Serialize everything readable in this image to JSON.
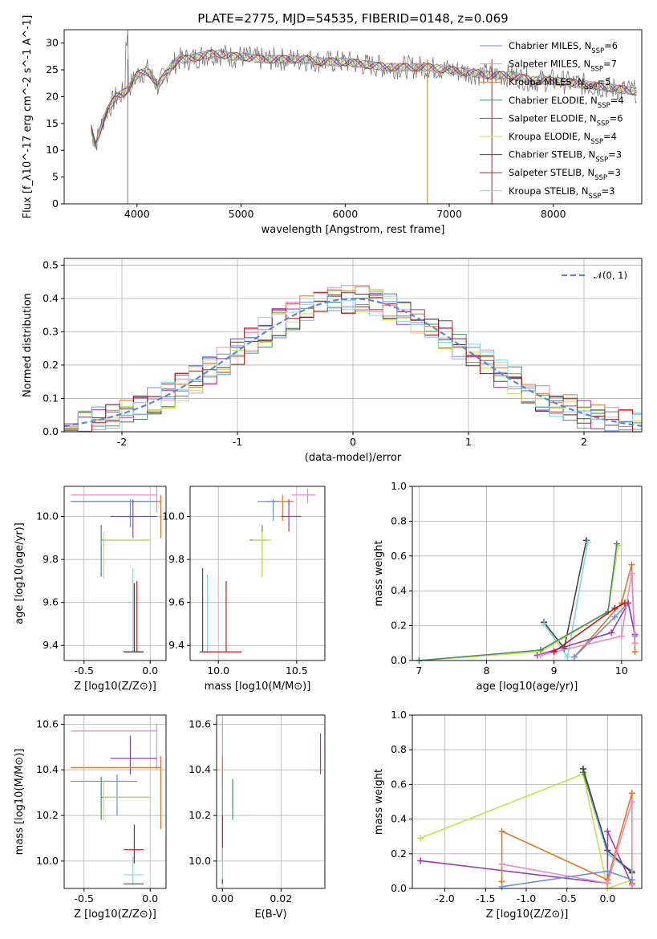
{
  "chart_data": [
    {
      "id": "spectrum",
      "type": "line",
      "title": "PLATE=2775, MJD=54535, FIBERID=0148, z=0.069",
      "xlabel": "wavelength [Angstrom, rest frame]",
      "ylabel": "Flux [f_λ10^-17 erg cm^-2 s^-1 A^-1]",
      "xlim": [
        3300,
        8850
      ],
      "ylim": [
        0,
        32.5
      ],
      "xticks": [
        4000,
        5000,
        6000,
        7000,
        8000
      ],
      "yticks": [
        0,
        5,
        10,
        15,
        20,
        25,
        30
      ],
      "legend_position": "top-right",
      "grid": false,
      "series": [
        {
          "name": "Chabrier MILES",
          "nssp": "6",
          "color": "#6f8fdc"
        },
        {
          "name": "Salpeter MILES",
          "nssp": "7",
          "color": "#e88bc5"
        },
        {
          "name": "Kroupa MILES",
          "nssp": "5",
          "color": "#e0762a"
        },
        {
          "name": "Chabrier ELODIE",
          "nssp": "4",
          "color": "#4f8a6a"
        },
        {
          "name": "Salpeter ELODIE",
          "nssp": "6",
          "color": "#9a3ab4"
        },
        {
          "name": "Kroupa ELODIE",
          "nssp": "4",
          "color": "#c8e04a"
        },
        {
          "name": "Chabrier STELIB",
          "nssp": "3",
          "color": "#444444"
        },
        {
          "name": "Salpeter STELIB",
          "nssp": "3",
          "color": "#c01818"
        },
        {
          "name": "Kroupa STELIB",
          "nssp": "3",
          "color": "#7fd6e0"
        }
      ],
      "data_grey_color": "#777777",
      "data": {
        "x": [
          3560,
          3600,
          3700,
          3800,
          3900,
          4000,
          4100,
          4200,
          4300,
          4400,
          4500,
          4600,
          4700,
          4800,
          4900,
          5000,
          5200,
          5400,
          5600,
          5800,
          6000,
          6200,
          6400,
          6600,
          6800,
          7000,
          7200,
          7400,
          7600,
          7700,
          7800,
          8000,
          8200,
          8400,
          8600,
          8800
        ],
        "y": [
          14,
          11,
          17,
          20,
          21,
          24,
          25,
          22,
          25,
          27,
          27,
          27.5,
          28,
          28,
          27.5,
          27.5,
          27,
          27,
          27,
          26.5,
          26.5,
          26,
          25.5,
          25.5,
          25.5,
          25,
          24.5,
          24,
          24,
          23.5,
          23,
          23,
          22.5,
          22,
          21.5,
          21
        ]
      }
    },
    {
      "id": "residuals",
      "type": "step",
      "xlabel": "(data-model)/error",
      "ylabel": "Normed distribution",
      "xlim": [
        -2.5,
        2.5
      ],
      "ylim": [
        0,
        0.52
      ],
      "xticks": [
        -2,
        -1,
        0,
        1,
        2
      ],
      "yticks": [
        0.0,
        0.1,
        0.2,
        0.3,
        0.4,
        0.5
      ],
      "grid": true,
      "gauss_label": "𝒩(0, 1)",
      "gauss_color": "#5b87d6"
    },
    {
      "id": "age_vs_Z",
      "type": "scatter",
      "xlabel": "Z [log10(Z/Z⊙)]",
      "ylabel": "age  [log10(age/yr)]",
      "xlim": [
        -0.65,
        0.12
      ],
      "ylim": [
        9.33,
        10.14
      ],
      "xticks": [
        -0.5,
        0.0
      ],
      "yticks": [
        9.4,
        9.6,
        9.8,
        10.0
      ],
      "grid": true,
      "points": [
        {
          "c": "#e88bc5",
          "x": 0.05,
          "y": 10.1,
          "xl": -0.6,
          "xh": 0.05,
          "yl": 10.02,
          "yh": 10.14
        },
        {
          "c": "#e0762a",
          "x": 0.08,
          "y": 10.07,
          "xl": -0.6,
          "xh": 0.08,
          "yl": 9.9,
          "yh": 10.1
        },
        {
          "c": "#6f8fdc",
          "x": -0.15,
          "y": 10.07,
          "xl": -0.6,
          "xh": 0.05,
          "yl": 9.95,
          "yh": 10.08
        },
        {
          "c": "#9a3ab4",
          "x": -0.13,
          "y": 10.0,
          "xl": -0.3,
          "xh": 0.05,
          "yl": 9.9,
          "yh": 10.08
        },
        {
          "c": "#4f8a6a",
          "x": -0.37,
          "y": 9.89,
          "xl": -0.37,
          "xh": 0.0,
          "yl": 9.72,
          "yh": 9.96
        },
        {
          "c": "#c8e04a",
          "x": -0.35,
          "y": 9.89,
          "xl": -0.35,
          "xh": 0.0,
          "yl": 9.71,
          "yh": 9.93
        },
        {
          "c": "#7fd6e0",
          "x": -0.13,
          "y": 9.37,
          "xl": -0.2,
          "xh": -0.05,
          "yl": 9.37,
          "yh": 9.76
        },
        {
          "c": "#c01818",
          "x": -0.1,
          "y": 9.37,
          "xl": -0.2,
          "xh": -0.05,
          "yl": 9.37,
          "yh": 9.7
        },
        {
          "c": "#444444",
          "x": -0.12,
          "y": 9.37,
          "xl": -0.2,
          "xh": -0.05,
          "yl": 9.37,
          "yh": 9.69
        }
      ]
    },
    {
      "id": "age_vs_mass",
      "type": "scatter",
      "xlabel": "mass [log10(M/M⊙)]",
      "ylabel": "",
      "xlim": [
        9.82,
        10.68
      ],
      "ylim": [
        9.33,
        10.14
      ],
      "xticks": [
        10.0,
        10.5
      ],
      "yticks": [
        9.4,
        9.6,
        9.8,
        10.0
      ],
      "grid": true,
      "points": [
        {
          "c": "#e88bc5",
          "x": 10.57,
          "y": 10.1,
          "xl": 10.47,
          "xh": 10.62,
          "yl": 10.06,
          "yh": 10.13
        },
        {
          "c": "#e0762a",
          "x": 10.41,
          "y": 10.07,
          "xl": 10.3,
          "xh": 10.48,
          "yl": 9.98,
          "yh": 10.1
        },
        {
          "c": "#6f8fdc",
          "x": 10.35,
          "y": 10.07,
          "xl": 10.25,
          "xh": 10.38,
          "yl": 9.98,
          "yh": 10.08
        },
        {
          "c": "#9a3ab4",
          "x": 10.45,
          "y": 10.0,
          "xl": 10.4,
          "xh": 10.53,
          "yl": 9.93,
          "yh": 10.08
        },
        {
          "c": "#4f8a6a",
          "x": 10.28,
          "y": 9.89,
          "xl": 10.2,
          "xh": 10.32,
          "yl": 9.72,
          "yh": 9.96
        },
        {
          "c": "#c8e04a",
          "x": 10.28,
          "y": 9.89,
          "xl": 10.22,
          "xh": 10.34,
          "yl": 9.72,
          "yh": 9.93
        },
        {
          "c": "#444444",
          "x": 9.9,
          "y": 9.37,
          "xl": 9.88,
          "xh": 9.93,
          "yl": 9.37,
          "yh": 9.76
        },
        {
          "c": "#7fd6e0",
          "x": 9.93,
          "y": 9.37,
          "xl": 9.9,
          "xh": 9.96,
          "yl": 9.37,
          "yh": 9.73
        },
        {
          "c": "#c01818",
          "x": 10.05,
          "y": 9.37,
          "xl": 9.9,
          "xh": 10.15,
          "yl": 9.37,
          "yh": 9.7
        }
      ]
    },
    {
      "id": "massweight_vs_age",
      "type": "line",
      "xlabel": "age  [log10(age/yr)]",
      "ylabel": "mass weight",
      "xlim": [
        6.9,
        10.3
      ],
      "ylim": [
        0,
        1.0
      ],
      "xticks": [
        7,
        8,
        9,
        10
      ],
      "yticks": [
        0.0,
        0.2,
        0.4,
        0.6,
        0.8,
        1.0
      ],
      "grid": true,
      "series": [
        {
          "c": "#444444",
          "x": [
            8.85,
            9.15,
            9.48
          ],
          "y": [
            0.22,
            0.07,
            0.69
          ]
        },
        {
          "c": "#7fd6e0",
          "x": [
            8.85,
            9.2,
            9.5
          ],
          "y": [
            0.21,
            0.02,
            0.68
          ]
        },
        {
          "c": "#c8e04a",
          "x": [
            7.0,
            8.8,
            9.8,
            9.95
          ],
          "y": [
            0.0,
            0.05,
            0.28,
            0.66
          ]
        },
        {
          "c": "#4f8a6a",
          "x": [
            7.0,
            8.8,
            9.8,
            9.93
          ],
          "y": [
            0.0,
            0.06,
            0.28,
            0.67
          ]
        },
        {
          "c": "#e0762a",
          "x": [
            9.3,
            10.0,
            10.15,
            10.2
          ],
          "y": [
            0.02,
            0.33,
            0.55,
            0.05
          ]
        },
        {
          "c": "#6f8fdc",
          "x": [
            9.3,
            9.9,
            10.1,
            10.2
          ],
          "y": [
            0.02,
            0.25,
            0.33,
            0.14
          ]
        },
        {
          "c": "#9a3ab4",
          "x": [
            8.75,
            9.85,
            10.1,
            10.2
          ],
          "y": [
            0.03,
            0.16,
            0.33,
            0.15
          ]
        },
        {
          "c": "#e88bc5",
          "x": [
            8.8,
            10.0,
            10.15,
            10.2
          ],
          "y": [
            0.03,
            0.14,
            0.5,
            0.1
          ]
        },
        {
          "c": "#c01818",
          "x": [
            9.0,
            9.9,
            10.05
          ],
          "y": [
            0.05,
            0.3,
            0.33
          ]
        }
      ]
    },
    {
      "id": "mass_vs_Z",
      "type": "scatter",
      "xlabel": "Z [log10(Z/Z⊙)]",
      "ylabel": "mass [log10(M/M⊙)]",
      "xlim": [
        -0.65,
        0.12
      ],
      "ylim": [
        9.88,
        10.64
      ],
      "xticks": [
        -0.5,
        0.0
      ],
      "yticks": [
        10.0,
        10.2,
        10.4,
        10.6
      ],
      "grid": true,
      "points": [
        {
          "c": "#e88bc5",
          "x": 0.05,
          "y": 10.57,
          "xl": -0.6,
          "xh": 0.05,
          "yl": 10.4,
          "yh": 10.6
        },
        {
          "c": "#9a3ab4",
          "x": -0.15,
          "y": 10.45,
          "xl": -0.3,
          "xh": 0.05,
          "yl": 10.38,
          "yh": 10.55
        },
        {
          "c": "#e0762a",
          "x": 0.08,
          "y": 10.41,
          "xl": -0.6,
          "xh": 0.08,
          "yl": 10.14,
          "yh": 10.46
        },
        {
          "c": "#6f8fdc",
          "x": -0.25,
          "y": 10.35,
          "xl": -0.6,
          "xh": -0.1,
          "yl": 10.2,
          "yh": 10.38
        },
        {
          "c": "#4f8a6a",
          "x": -0.37,
          "y": 10.28,
          "xl": -0.37,
          "xh": 0.0,
          "yl": 10.18,
          "yh": 10.37
        },
        {
          "c": "#c8e04a",
          "x": -0.35,
          "y": 10.28,
          "xl": -0.35,
          "xh": 0.0,
          "yl": 10.18,
          "yh": 10.35
        },
        {
          "c": "#c01818",
          "x": -0.12,
          "y": 10.05,
          "xl": -0.2,
          "xh": -0.05,
          "yl": 9.99,
          "yh": 10.16
        },
        {
          "c": "#7fd6e0",
          "x": -0.13,
          "y": 9.94,
          "xl": -0.2,
          "xh": -0.05,
          "yl": 9.9,
          "yh": 10.02
        },
        {
          "c": "#444444",
          "x": -0.12,
          "y": 9.9,
          "xl": -0.2,
          "xh": -0.05,
          "yl": 9.9,
          "yh": 9.9
        }
      ]
    },
    {
      "id": "mass_vs_ebv",
      "type": "scatter",
      "xlabel": "E(B-V)",
      "ylabel": "",
      "xlim": [
        -0.002,
        0.035
      ],
      "ylim": [
        9.88,
        10.64
      ],
      "xticks": [
        0.0,
        0.02
      ],
      "yticks": [
        10.0,
        10.2,
        10.4,
        10.6
      ],
      "grid": true,
      "points": [
        {
          "c": "#e88bc5",
          "x": 0.0,
          "y": 10.55,
          "xl": 0.0,
          "xh": 0.0,
          "yl": 10.4,
          "yh": 10.62
        },
        {
          "c": "#e0762a",
          "x": 0.0,
          "y": 10.4,
          "xl": 0.0,
          "xh": 0.0,
          "yl": 10.3,
          "yh": 10.46
        },
        {
          "c": "#9a3ab4",
          "x": 0.0335,
          "y": 10.45,
          "xl": 0.0335,
          "xh": 0.0335,
          "yl": 10.38,
          "yh": 10.56
        },
        {
          "c": "#4f8a6a",
          "x": 0.0035,
          "y": 10.28,
          "xl": 0.0035,
          "xh": 0.0035,
          "yl": 10.18,
          "yh": 10.36
        },
        {
          "c": "#c8e04a",
          "x": 0.0,
          "y": 10.28,
          "xl": 0.0,
          "xh": 0.0,
          "yl": 10.18,
          "yh": 10.36
        },
        {
          "c": "#6f8fdc",
          "x": 0.0,
          "y": 10.3,
          "xl": 0.0,
          "xh": 0.0,
          "yl": 10.2,
          "yh": 10.38
        },
        {
          "c": "#c01818",
          "x": 0.0,
          "y": 10.1,
          "xl": 0.0,
          "xh": 0.0,
          "yl": 10.0,
          "yh": 10.2
        },
        {
          "c": "#7fd6e0",
          "x": 0.0,
          "y": 9.95,
          "xl": 0.0,
          "xh": 0.0,
          "yl": 9.9,
          "yh": 10.06
        },
        {
          "c": "#444444",
          "x": 0.0,
          "y": 9.9,
          "xl": 0.0,
          "xh": 0.0,
          "yl": 9.9,
          "yh": 9.92
        }
      ]
    },
    {
      "id": "massweight_vs_Z",
      "type": "line",
      "xlabel": "Z [log10(Z/Z⊙)]",
      "ylabel": "mass weight",
      "xlim": [
        -2.4,
        0.42
      ],
      "ylim": [
        0,
        1.0
      ],
      "xticks": [
        -2.0,
        -1.5,
        -1.0,
        -0.5,
        0.0
      ],
      "yticks": [
        0.0,
        0.2,
        0.4,
        0.6,
        0.8,
        1.0
      ],
      "grid": true,
      "series": [
        {
          "c": "#c8e04a",
          "x": [
            -2.3,
            -0.3,
            0.0,
            0.3
          ],
          "y": [
            0.29,
            0.66,
            0.0,
            0.05
          ]
        },
        {
          "c": "#4f8a6a",
          "x": [
            -0.3,
            0.0,
            0.3
          ],
          "y": [
            0.67,
            0.2,
            0.1
          ]
        },
        {
          "c": "#7fd6e0",
          "x": [
            -0.3,
            0.0,
            0.3
          ],
          "y": [
            0.69,
            0.2,
            0.09
          ]
        },
        {
          "c": "#444444",
          "x": [
            -0.3,
            0.0,
            0.3
          ],
          "y": [
            0.69,
            0.22,
            0.09
          ]
        },
        {
          "c": "#9a3ab4",
          "x": [
            -2.3,
            0.0,
            0.0,
            0.3
          ],
          "y": [
            0.16,
            0.03,
            0.33,
            0.02
          ]
        },
        {
          "c": "#e0762a",
          "x": [
            -1.3,
            -1.3,
            0.0,
            0.3,
            0.3
          ],
          "y": [
            0.04,
            0.33,
            0.05,
            0.55,
            0.03
          ]
        },
        {
          "c": "#e88bc5",
          "x": [
            -1.3,
            0.0,
            0.3,
            0.3
          ],
          "y": [
            0.14,
            0.03,
            0.5,
            0.02
          ]
        },
        {
          "c": "#6f8fdc",
          "x": [
            -1.3,
            0.0,
            0.3
          ],
          "y": [
            0.01,
            0.1,
            0.05
          ]
        }
      ]
    }
  ]
}
